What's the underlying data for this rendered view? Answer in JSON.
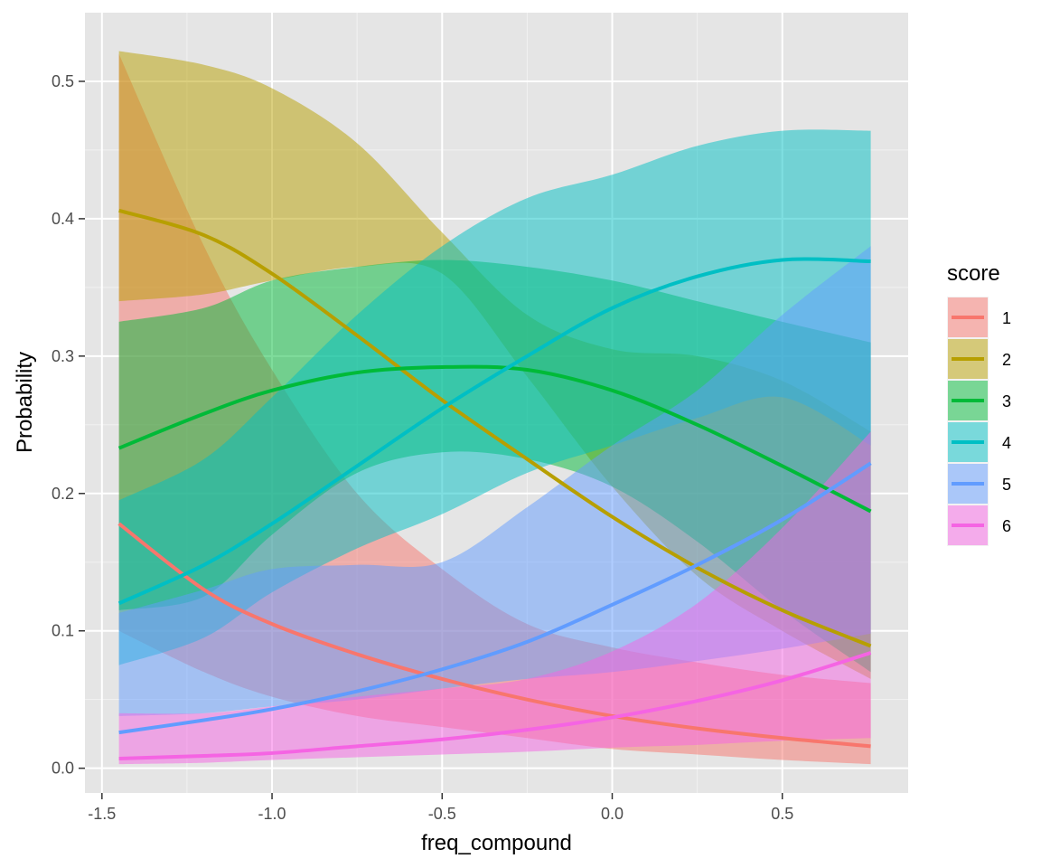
{
  "chart_data": {
    "type": "area",
    "xlabel": "freq_compound",
    "ylabel": "Probability",
    "xlim": [
      -1.55,
      0.87
    ],
    "ylim": [
      -0.018,
      0.55
    ],
    "x_ticks": [
      -1.5,
      -1.0,
      -0.5,
      0.0,
      0.5
    ],
    "x_tick_labels": [
      "-1.5",
      "-1.0",
      "-0.5",
      "0.0",
      "0.5"
    ],
    "y_ticks": [
      0.0,
      0.1,
      0.2,
      0.3,
      0.4,
      0.5
    ],
    "y_tick_labels": [
      "0.0",
      "0.1",
      "0.2",
      "0.3",
      "0.4",
      "0.5"
    ],
    "grid": true,
    "panel_background": "#E5E5E5",
    "legend": {
      "title": "score",
      "position": "right"
    },
    "x": [
      -1.45,
      -1.2,
      -1.0,
      -0.75,
      -0.5,
      -0.25,
      0.0,
      0.25,
      0.5,
      0.76
    ],
    "series": [
      {
        "name": "1",
        "color": "#F8766D",
        "values": [
          0.178,
          0.13,
          0.105,
          0.083,
          0.065,
          0.05,
          0.038,
          0.029,
          0.022,
          0.016
        ],
        "lower": [
          0.1,
          0.07,
          0.052,
          0.038,
          0.03,
          0.022,
          0.014,
          0.01,
          0.006,
          0.003
        ],
        "upper": [
          0.52,
          0.38,
          0.29,
          0.2,
          0.145,
          0.105,
          0.088,
          0.077,
          0.068,
          0.062
        ]
      },
      {
        "name": "2",
        "color": "#B79F00",
        "values": [
          0.406,
          0.388,
          0.36,
          0.315,
          0.268,
          0.225,
          0.183,
          0.146,
          0.115,
          0.089
        ],
        "lower": [
          0.34,
          0.345,
          0.355,
          0.365,
          0.36,
          0.285,
          0.205,
          0.14,
          0.1,
          0.065
        ],
        "upper": [
          0.522,
          0.512,
          0.495,
          0.455,
          0.39,
          0.33,
          0.305,
          0.3,
          0.282,
          0.245
        ]
      },
      {
        "name": "3",
        "color": "#00BA38",
        "values": [
          0.233,
          0.258,
          0.275,
          0.288,
          0.292,
          0.29,
          0.275,
          0.25,
          0.22,
          0.187
        ],
        "lower": [
          0.115,
          0.125,
          0.17,
          0.215,
          0.23,
          0.225,
          0.205,
          0.165,
          0.115,
          0.07
        ],
        "upper": [
          0.325,
          0.335,
          0.355,
          0.365,
          0.37,
          0.365,
          0.355,
          0.34,
          0.325,
          0.31
        ]
      },
      {
        "name": "4",
        "color": "#00BFC4",
        "values": [
          0.12,
          0.148,
          0.178,
          0.22,
          0.262,
          0.3,
          0.335,
          0.358,
          0.37,
          0.369
        ],
        "lower": [
          0.075,
          0.095,
          0.128,
          0.16,
          0.185,
          0.215,
          0.235,
          0.255,
          0.27,
          0.235
        ],
        "upper": [
          0.195,
          0.225,
          0.27,
          0.33,
          0.38,
          0.415,
          0.432,
          0.453,
          0.464,
          0.464
        ]
      },
      {
        "name": "5",
        "color": "#619CFF",
        "values": [
          0.026,
          0.035,
          0.043,
          0.056,
          0.072,
          0.092,
          0.119,
          0.148,
          0.181,
          0.222
        ],
        "lower": [
          0.038,
          0.04,
          0.045,
          0.05,
          0.058,
          0.065,
          0.07,
          0.078,
          0.087,
          0.098
        ],
        "upper": [
          0.113,
          0.13,
          0.145,
          0.148,
          0.15,
          0.19,
          0.235,
          0.275,
          0.33,
          0.38
        ]
      },
      {
        "name": "6",
        "color": "#F564E3",
        "values": [
          0.007,
          0.009,
          0.011,
          0.016,
          0.021,
          0.028,
          0.037,
          0.049,
          0.064,
          0.084
        ],
        "lower": [
          0.003,
          0.004,
          0.006,
          0.008,
          0.01,
          0.012,
          0.015,
          0.017,
          0.02,
          0.022
        ],
        "upper": [
          0.04,
          0.04,
          0.045,
          0.052,
          0.058,
          0.065,
          0.085,
          0.12,
          0.175,
          0.245
        ]
      }
    ]
  }
}
